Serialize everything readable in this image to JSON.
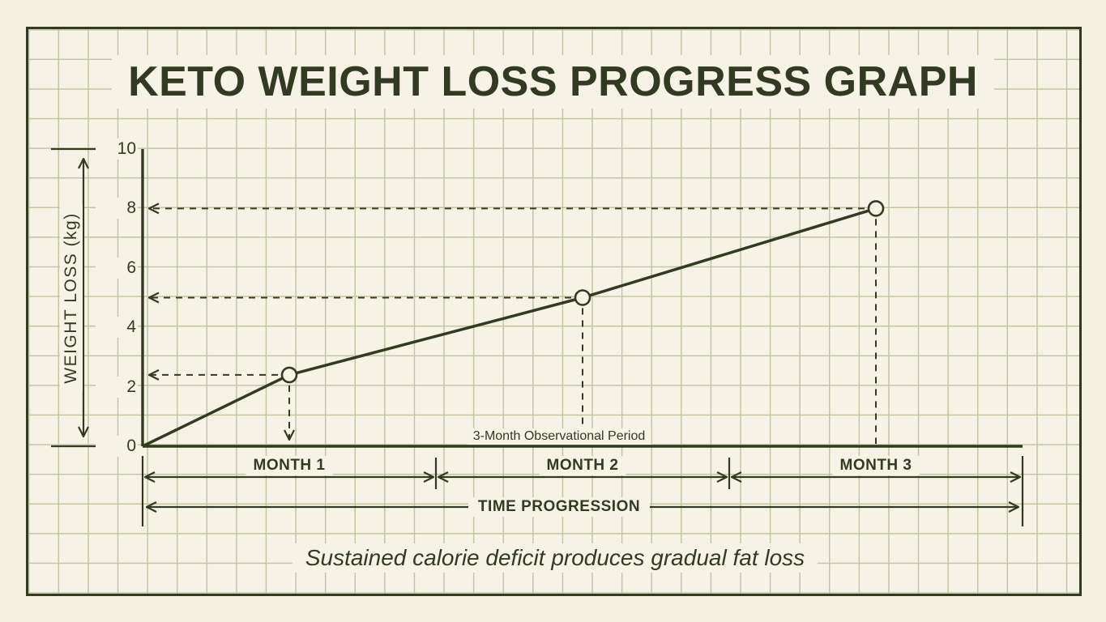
{
  "chart_data": {
    "type": "line",
    "title": "KETO WEIGHT LOSS PROGRESS GRAPH",
    "categories": [
      "MONTH 1",
      "MONTH 2",
      "MONTH 3"
    ],
    "values": [
      2.4,
      5,
      8
    ],
    "line_starts_at_origin": true,
    "ylabel": "WEIGHT LOSS (kg)",
    "xlabel": "TIME PROGRESSION",
    "yticks": [
      0,
      2,
      4,
      6,
      8,
      10
    ],
    "ylim": [
      0,
      10
    ],
    "annotation": "3-Month Observational Period",
    "caption": "Sustained calorie deficit produces gradual fat loss",
    "grid": true,
    "legend": "none",
    "marker_style": "open-circle",
    "guide_lines": "dashed arrows from each data point to x and y axes"
  },
  "colors": {
    "ink": "#333a22",
    "background_outer": "#f3efe1",
    "background_paper": "#f6f3e6",
    "grid_line": "#c1c5a3"
  }
}
